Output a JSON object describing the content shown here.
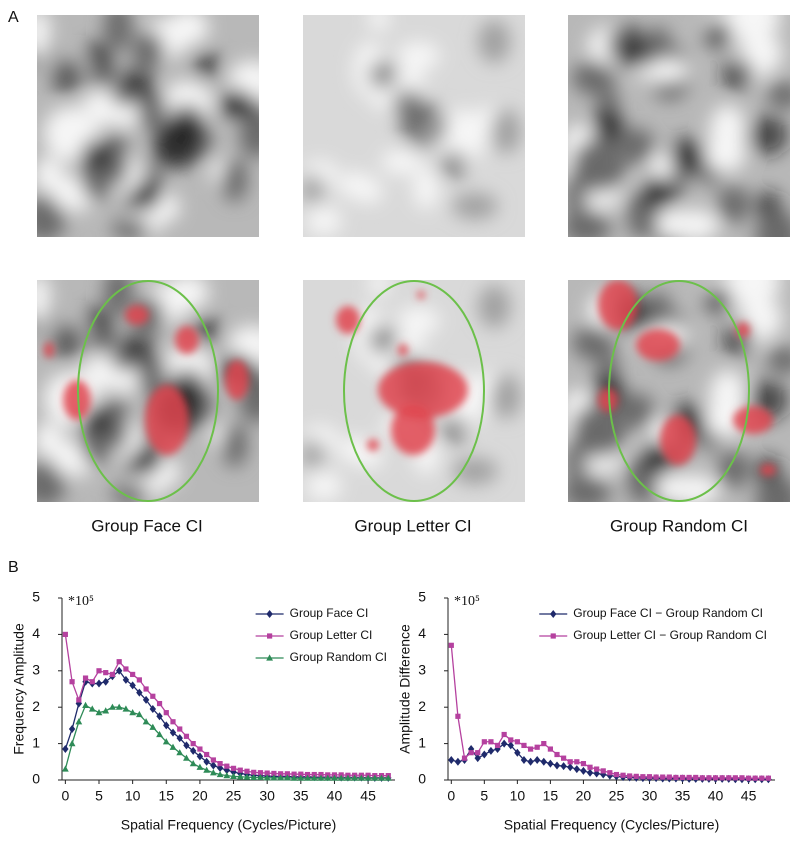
{
  "panel_a": {
    "label": "A",
    "captions": [
      "Group Face CI",
      "Group Letter CI",
      "Group Random CI"
    ]
  },
  "panel_b": {
    "label": "B"
  },
  "chart_data": [
    {
      "type": "line",
      "annotation": "*10⁵",
      "xlabel": "Spatial Frequency (Cycles/Picture)",
      "ylabel": "Frequency Amplitude",
      "x": [
        0,
        1,
        2,
        3,
        4,
        5,
        6,
        7,
        8,
        9,
        10,
        11,
        12,
        13,
        14,
        15,
        16,
        17,
        18,
        19,
        20,
        21,
        22,
        23,
        24,
        25,
        26,
        27,
        28,
        29,
        30,
        31,
        32,
        33,
        34,
        35,
        36,
        37,
        38,
        39,
        40,
        41,
        42,
        43,
        44,
        45,
        46,
        47,
        48
      ],
      "xlim": [
        -0.5,
        49
      ],
      "xticks": [
        0,
        5,
        10,
        15,
        20,
        25,
        30,
        35,
        40,
        45
      ],
      "ylim": [
        0,
        5
      ],
      "yticks": [
        0,
        1,
        2,
        3,
        4,
        5
      ],
      "legend": "upper right",
      "series": [
        {
          "name": "Group Face CI",
          "color": "#1f2a6b",
          "marker": "diamond",
          "values": [
            0.85,
            1.4,
            2.1,
            2.7,
            2.65,
            2.65,
            2.7,
            2.85,
            3.0,
            2.75,
            2.6,
            2.4,
            2.2,
            1.95,
            1.75,
            1.5,
            1.3,
            1.15,
            0.95,
            0.8,
            0.65,
            0.5,
            0.4,
            0.33,
            0.27,
            0.22,
            0.18,
            0.15,
            0.13,
            0.12,
            0.11,
            0.1,
            0.1,
            0.1,
            0.09,
            0.09,
            0.09,
            0.08,
            0.08,
            0.08,
            0.08,
            0.07,
            0.07,
            0.07,
            0.07,
            0.06,
            0.06,
            0.06,
            0.06
          ]
        },
        {
          "name": "Group Letter CI",
          "color": "#b5419f",
          "marker": "square",
          "values": [
            4.0,
            2.7,
            2.2,
            2.8,
            2.7,
            3.0,
            2.95,
            2.9,
            3.25,
            3.05,
            2.9,
            2.75,
            2.5,
            2.3,
            2.1,
            1.85,
            1.6,
            1.4,
            1.2,
            1.0,
            0.85,
            0.7,
            0.55,
            0.45,
            0.38,
            0.32,
            0.27,
            0.24,
            0.21,
            0.2,
            0.19,
            0.18,
            0.17,
            0.17,
            0.16,
            0.16,
            0.15,
            0.15,
            0.15,
            0.14,
            0.14,
            0.14,
            0.13,
            0.13,
            0.13,
            0.13,
            0.12,
            0.12,
            0.12
          ]
        },
        {
          "name": "Group Random CI",
          "color": "#2e8b57",
          "marker": "triangle",
          "values": [
            0.3,
            1.0,
            1.6,
            2.05,
            1.95,
            1.85,
            1.9,
            2.0,
            2.0,
            1.95,
            1.85,
            1.8,
            1.6,
            1.45,
            1.25,
            1.05,
            0.9,
            0.75,
            0.6,
            0.45,
            0.35,
            0.27,
            0.2,
            0.15,
            0.12,
            0.1,
            0.09,
            0.08,
            0.07,
            0.07,
            0.06,
            0.06,
            0.06,
            0.06,
            0.05,
            0.05,
            0.05,
            0.05,
            0.05,
            0.05,
            0.05,
            0.05,
            0.05,
            0.05,
            0.05,
            0.05,
            0.05,
            0.05,
            0.05
          ]
        }
      ]
    },
    {
      "type": "line",
      "annotation": "*10⁵",
      "xlabel": "Spatial Frequency (Cycles/Picture)",
      "ylabel": "Amplitude Difference",
      "x": [
        0,
        1,
        2,
        3,
        4,
        5,
        6,
        7,
        8,
        9,
        10,
        11,
        12,
        13,
        14,
        15,
        16,
        17,
        18,
        19,
        20,
        21,
        22,
        23,
        24,
        25,
        26,
        27,
        28,
        29,
        30,
        31,
        32,
        33,
        34,
        35,
        36,
        37,
        38,
        39,
        40,
        41,
        42,
        43,
        44,
        45,
        46,
        47,
        48
      ],
      "xlim": [
        -0.5,
        49
      ],
      "xticks": [
        0,
        5,
        10,
        15,
        20,
        25,
        30,
        35,
        40,
        45
      ],
      "ylim": [
        0,
        5
      ],
      "yticks": [
        0,
        1,
        2,
        3,
        4,
        5
      ],
      "legend": "upper right",
      "series": [
        {
          "name": "Group Face CI  −  Group Random CI",
          "color": "#1f2a6b",
          "marker": "diamond",
          "values": [
            0.55,
            0.5,
            0.55,
            0.85,
            0.6,
            0.7,
            0.8,
            0.85,
            1.0,
            0.95,
            0.75,
            0.55,
            0.5,
            0.55,
            0.5,
            0.45,
            0.4,
            0.38,
            0.35,
            0.3,
            0.25,
            0.2,
            0.18,
            0.15,
            0.12,
            0.1,
            0.08,
            0.07,
            0.06,
            0.05,
            0.05,
            0.05,
            0.04,
            0.04,
            0.04,
            0.04,
            0.03,
            0.03,
            0.03,
            0.03,
            0.03,
            0.03,
            0.03,
            0.02,
            0.02,
            0.02,
            0.02,
            0.02,
            0.02
          ]
        },
        {
          "name": "Group Letter CI  −  Group Random CI",
          "color": "#b5419f",
          "marker": "square",
          "values": [
            3.7,
            1.75,
            0.6,
            0.75,
            0.75,
            1.05,
            1.05,
            0.95,
            1.25,
            1.1,
            1.05,
            0.95,
            0.85,
            0.9,
            1.0,
            0.85,
            0.7,
            0.6,
            0.5,
            0.5,
            0.45,
            0.35,
            0.3,
            0.25,
            0.2,
            0.15,
            0.13,
            0.11,
            0.1,
            0.09,
            0.09,
            0.08,
            0.08,
            0.08,
            0.07,
            0.07,
            0.07,
            0.07,
            0.06,
            0.06,
            0.06,
            0.06,
            0.06,
            0.06,
            0.06,
            0.05,
            0.05,
            0.05,
            0.05
          ]
        }
      ]
    }
  ]
}
